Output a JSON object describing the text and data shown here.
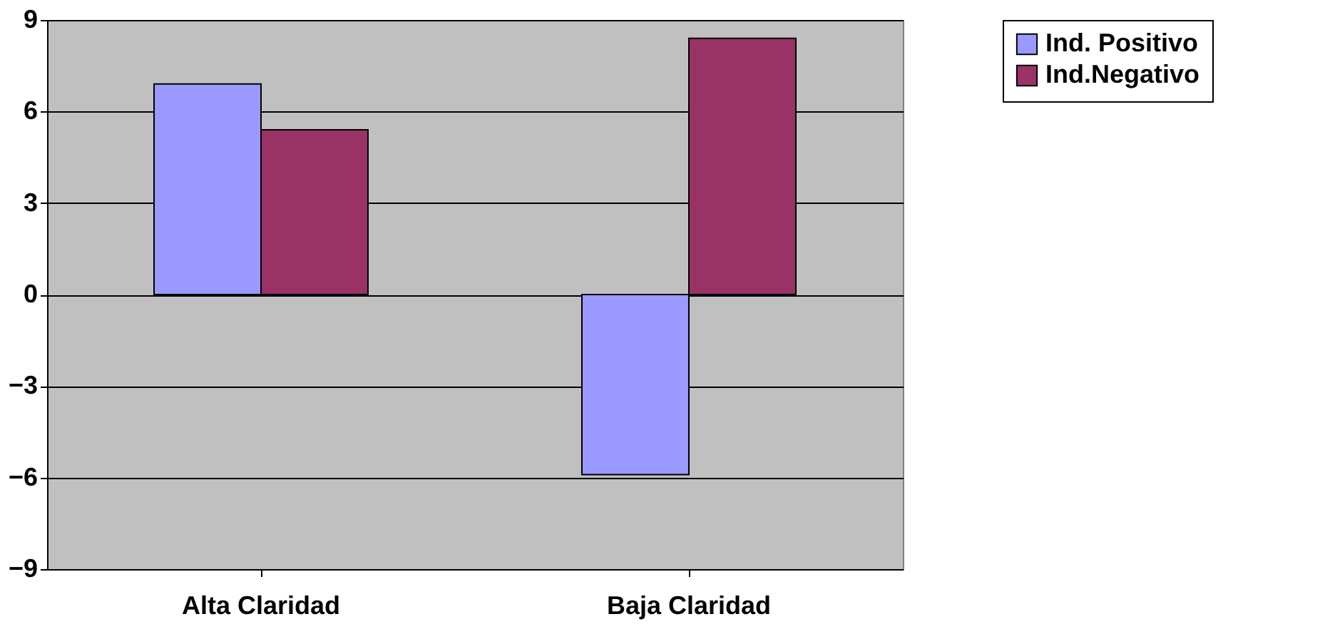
{
  "chart_data": {
    "type": "bar",
    "categories": [
      "Alta Claridad",
      "Baja Claridad"
    ],
    "series": [
      {
        "name": "Ind. Positivo",
        "color": "#9999ff",
        "values": [
          6.9,
          -5.9
        ]
      },
      {
        "name": "Ind.Negativo",
        "color": "#993366",
        "values": [
          5.4,
          8.4
        ]
      }
    ],
    "ylim": [
      -9,
      9
    ],
    "yticks": [
      -9,
      -6,
      -3,
      0,
      3,
      6,
      9
    ],
    "grid": "y",
    "legend": "right"
  }
}
